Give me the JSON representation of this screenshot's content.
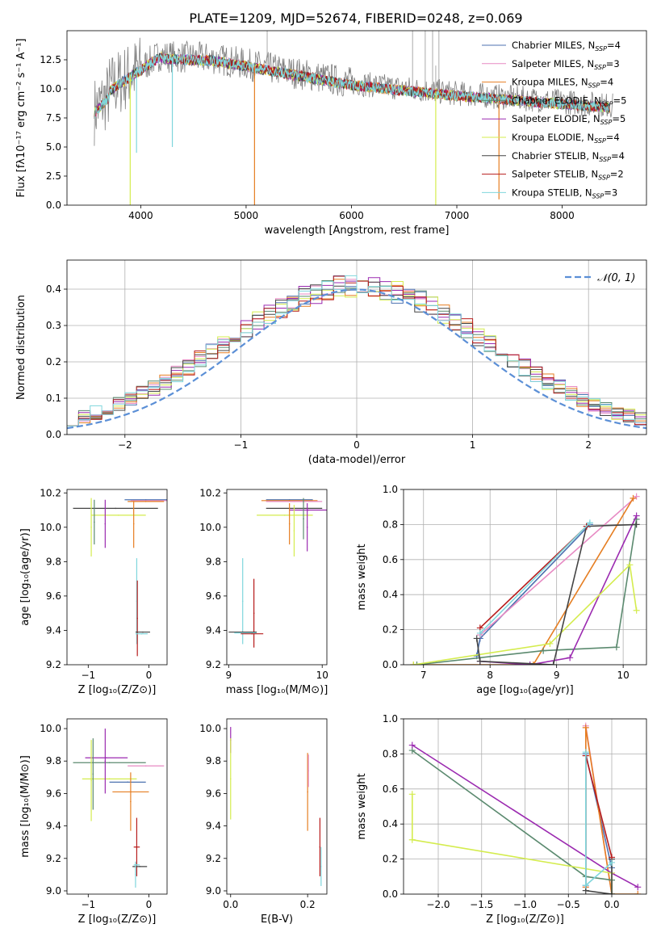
{
  "colors": {
    "chabrier_miles": "#4c72b0",
    "salpeter_miles": "#e78ac3",
    "kroupa_miles": "#e67e22",
    "chabrier_elodie": "#5b8a6f",
    "salpeter_elodie": "#9b2ab0",
    "kroupa_elodie": "#d4ec4e",
    "chabrier_stelib": "#444444",
    "salpeter_stelib": "#b71c1c",
    "kroupa_stelib": "#7fd6dc",
    "gauss": "#5b8fd6",
    "data": "#808080"
  },
  "chart_data": [
    {
      "id": "spectrum",
      "type": "line",
      "title": "PLATE=1209, MJD=52674, FIBERID=0248, z=0.069",
      "xlabel": "wavelength [Angstrom, rest frame]",
      "ylabel": "Flux [fλ10⁻¹⁷ erg cm⁻² s⁻¹ A⁻¹]",
      "xlim": [
        3300,
        8800
      ],
      "ylim": [
        0,
        15
      ],
      "xticks": [
        "4000",
        "5000",
        "6000",
        "7000",
        "8000"
      ],
      "yticks": [
        "0.0",
        "2.5",
        "5.0",
        "7.5",
        "10.0",
        "12.5"
      ],
      "legend_position": "top-right",
      "series": [
        {
          "name": "Chabrier MILES, N",
          "sub": "SSP",
          "suffix": "=4"
        },
        {
          "name": "Salpeter MILES, N",
          "sub": "SSP",
          "suffix": "=3"
        },
        {
          "name": "Kroupa MILES, N",
          "sub": "SSP",
          "suffix": "=4"
        },
        {
          "name": "Chabrier ELODIE, N",
          "sub": "SSP",
          "suffix": "=5"
        },
        {
          "name": "Salpeter ELODIE, N",
          "sub": "SSP",
          "suffix": "=5"
        },
        {
          "name": "Kroupa ELODIE, N",
          "sub": "SSP",
          "suffix": "=4"
        },
        {
          "name": "Chabrier STELIB, N",
          "sub": "SSP",
          "suffix": "=4"
        },
        {
          "name": "Salpeter STELIB, N",
          "sub": "SSP",
          "suffix": "=2"
        },
        {
          "name": "Kroupa STELIB, N",
          "sub": "SSP",
          "suffix": "=3"
        }
      ]
    },
    {
      "id": "residuals",
      "type": "histogram",
      "xlabel": "(data-model)/error",
      "ylabel": "Normed distribution",
      "xlim": [
        -2.5,
        2.5
      ],
      "ylim": [
        0,
        0.48
      ],
      "xticks": [
        "−2",
        "−1",
        "0",
        "1",
        "2"
      ],
      "yticks": [
        "0.0",
        "0.1",
        "0.2",
        "0.3",
        "0.4"
      ],
      "grid": true,
      "legend": "𝒩(0, 1)",
      "gaussian": {
        "mean": 0,
        "sigma": 1
      }
    },
    {
      "id": "age_vs_Z",
      "type": "errorbar",
      "xlabel": "Z [log₁₀(Z/Z⊙)]",
      "ylabel": "age  [log₁₀(age/yr)]",
      "xlim": [
        -1.35,
        0.3
      ],
      "ylim": [
        9.2,
        10.22
      ],
      "xticks": [
        "−1",
        "0"
      ],
      "yticks": [
        "9.2",
        "9.4",
        "9.6",
        "9.8",
        "10.0",
        "10.2"
      ],
      "points": [
        {
          "s": "chabrier_stelib",
          "x": -0.55,
          "xerr": 0.7,
          "y": 10.11,
          "yerr": 0.0
        },
        {
          "s": "kroupa_elodie",
          "x": -0.5,
          "xerr": 0.45,
          "y": 10.07,
          "yerr": 0.0
        },
        {
          "s": "chabrier_elodie",
          "x": -0.9,
          "xerr": 0.0,
          "y": 10.03,
          "yerr": 0.13
        },
        {
          "s": "kroupa_elodie",
          "x": -0.95,
          "xerr": 0.0,
          "y": 10.0,
          "yerr": 0.17
        },
        {
          "s": "salpeter_elodie",
          "x": -0.72,
          "xerr": 0.0,
          "y": 10.02,
          "yerr": 0.14
        },
        {
          "s": "kroupa_miles",
          "x": -0.25,
          "xerr": 0.0,
          "y": 10.02,
          "yerr": 0.14
        },
        {
          "s": "chabrier_miles",
          "x": -0.05,
          "xerr": 0.35,
          "y": 10.16,
          "yerr": 0.0
        },
        {
          "s": "salpeter_miles",
          "x": 0.0,
          "xerr": 0.3,
          "y": 10.155,
          "yerr": 0.0
        },
        {
          "s": "kroupa_miles",
          "x": -0.05,
          "xerr": 0.3,
          "y": 10.15,
          "yerr": 0.0
        },
        {
          "s": "kroupa_stelib",
          "x": -0.2,
          "xerr": 0.0,
          "y": 9.57,
          "yerr": 0.25
        },
        {
          "s": "salpeter_stelib",
          "x": -0.19,
          "xerr": 0.0,
          "y": 9.47,
          "yerr": 0.22
        },
        {
          "s": "chabrier_stelib",
          "x": -0.1,
          "xerr": 0.12,
          "y": 9.39,
          "yerr": 0.0
        },
        {
          "s": "kroupa_stelib",
          "x": -0.12,
          "xerr": 0.1,
          "y": 9.38,
          "yerr": 0.0
        }
      ]
    },
    {
      "id": "age_vs_mass",
      "type": "errorbar",
      "xlabel": "mass [log₁₀(M/M⊙)]",
      "ylabel": "",
      "xlim": [
        8.98,
        10.05
      ],
      "ylim": [
        9.2,
        10.22
      ],
      "xticks": [
        "9",
        "10"
      ],
      "yticks": [
        "9.2",
        "9.4",
        "9.6",
        "9.8",
        "10.0",
        "10.2"
      ],
      "points": [
        {
          "s": "chabrier_miles",
          "x": 9.65,
          "xerr": 0.25,
          "y": 10.16,
          "yerr": 0.0
        },
        {
          "s": "kroupa_miles",
          "x": 9.65,
          "xerr": 0.3,
          "y": 10.155,
          "yerr": 0.0
        },
        {
          "s": "salpeter_miles",
          "x": 9.7,
          "xerr": 0.3,
          "y": 10.15,
          "yerr": 0.0
        },
        {
          "s": "chabrier_stelib",
          "x": 9.7,
          "xerr": 0.3,
          "y": 10.11,
          "yerr": 0.0
        },
        {
          "s": "salpeter_elodie",
          "x": 9.85,
          "xerr": 0.2,
          "y": 10.1,
          "yerr": 0.0
        },
        {
          "s": "kroupa_elodie",
          "x": 9.6,
          "xerr": 0.3,
          "y": 10.07,
          "yerr": 0.0
        },
        {
          "s": "kroupa_elodie",
          "x": 9.7,
          "xerr": 0.0,
          "y": 9.98,
          "yerr": 0.15
        },
        {
          "s": "chabrier_elodie",
          "x": 9.8,
          "xerr": 0.0,
          "y": 10.05,
          "yerr": 0.12
        },
        {
          "s": "salpeter_elodie",
          "x": 9.84,
          "xerr": 0.0,
          "y": 10.0,
          "yerr": 0.14
        },
        {
          "s": "kroupa_miles",
          "x": 9.65,
          "xerr": 0.0,
          "y": 10.02,
          "yerr": 0.12
        },
        {
          "s": "kroupa_stelib",
          "x": 9.15,
          "xerr": 0.0,
          "y": 9.57,
          "yerr": 0.25
        },
        {
          "s": "salpeter_stelib",
          "x": 9.27,
          "xerr": 0.0,
          "y": 9.5,
          "yerr": 0.2
        },
        {
          "s": "chabrier_stelib",
          "x": 9.15,
          "xerr": 0.15,
          "y": 9.39,
          "yerr": 0.0
        },
        {
          "s": "kroupa_stelib",
          "x": 9.18,
          "xerr": 0.12,
          "y": 9.385,
          "yerr": 0.0
        },
        {
          "s": "salpeter_stelib",
          "x": 9.25,
          "xerr": 0.12,
          "y": 9.38,
          "yerr": 0.0
        }
      ]
    },
    {
      "id": "weight_vs_age",
      "type": "line",
      "xlabel": "age  [log₁₀(age/yr)]",
      "ylabel": "mass weight",
      "xlim": [
        6.7,
        10.35
      ],
      "ylim": [
        0,
        1.0
      ],
      "xticks": [
        "7",
        "8",
        "9",
        "10"
      ],
      "yticks": [
        "0.0",
        "0.2",
        "0.4",
        "0.6",
        "0.8",
        "1.0"
      ],
      "grid": true,
      "series": [
        {
          "s": "chabrier_miles",
          "x": [
            7.8,
            7.85,
            9.5
          ],
          "y": [
            0.05,
            0.15,
            0.8
          ]
        },
        {
          "s": "salpeter_miles",
          "x": [
            7.85,
            10.2
          ],
          "y": [
            0.17,
            0.96
          ]
        },
        {
          "s": "kroupa_miles",
          "x": [
            6.85,
            8.65,
            10.15
          ],
          "y": [
            0.0,
            0.0,
            0.95
          ]
        },
        {
          "s": "chabrier_elodie",
          "x": [
            6.9,
            8.8,
            9.9,
            10.2
          ],
          "y": [
            0.0,
            0.08,
            0.1,
            0.83
          ]
        },
        {
          "s": "salpeter_elodie",
          "x": [
            7.85,
            8.6,
            9.2,
            10.2
          ],
          "y": [
            0.02,
            0.0,
            0.04,
            0.85
          ]
        },
        {
          "s": "kroupa_elodie",
          "x": [
            6.85,
            8.9,
            10.1,
            10.2
          ],
          "y": [
            0.0,
            0.12,
            0.57,
            0.31
          ]
        },
        {
          "s": "chabrier_stelib",
          "x": [
            7.8,
            7.85,
            8.95,
            9.45,
            10.2
          ],
          "y": [
            0.15,
            0.02,
            0.0,
            0.79,
            0.8
          ]
        },
        {
          "s": "salpeter_stelib",
          "x": [
            7.85,
            9.45
          ],
          "y": [
            0.21,
            0.79
          ]
        },
        {
          "s": "kroupa_stelib",
          "x": [
            7.85,
            9.5
          ],
          "y": [
            0.18,
            0.81
          ]
        }
      ]
    },
    {
      "id": "mass_vs_Z",
      "type": "errorbar",
      "xlabel": "Z [log₁₀(Z/Z⊙)]",
      "ylabel": "mass [log₁₀(M/M⊙)]",
      "xlim": [
        -1.35,
        0.3
      ],
      "ylim": [
        8.98,
        10.06
      ],
      "xticks": [
        "−1",
        "0"
      ],
      "yticks": [
        "9.0",
        "9.2",
        "9.4",
        "9.6",
        "9.8",
        "10.0"
      ],
      "points": [
        {
          "s": "chabrier_elodie",
          "x": -0.65,
          "xerr": 0.6,
          "y": 9.79,
          "yerr": 0.0
        },
        {
          "s": "salpeter_elodie",
          "x": -0.7,
          "xerr": 0.35,
          "y": 9.82,
          "yerr": 0.0
        },
        {
          "s": "kroupa_elodie",
          "x": -0.65,
          "xerr": 0.45,
          "y": 9.69,
          "yerr": 0.0
        },
        {
          "s": "chabrier_elodie",
          "x": -0.92,
          "xerr": 0.0,
          "y": 9.72,
          "yerr": 0.22
        },
        {
          "s": "kroupa_elodie",
          "x": -0.95,
          "xerr": 0.0,
          "y": 9.68,
          "yerr": 0.25
        },
        {
          "s": "salpeter_elodie",
          "x": -0.72,
          "xerr": 0.0,
          "y": 9.8,
          "yerr": 0.2
        },
        {
          "s": "salpeter_miles",
          "x": -0.05,
          "xerr": 0.3,
          "y": 9.77,
          "yerr": 0.0
        },
        {
          "s": "chabrier_miles",
          "x": -0.35,
          "xerr": 0.3,
          "y": 9.67,
          "yerr": 0.0
        },
        {
          "s": "kroupa_miles",
          "x": -0.3,
          "xerr": 0.3,
          "y": 9.61,
          "yerr": 0.0
        },
        {
          "s": "kroupa_miles",
          "x": -0.3,
          "xerr": 0.0,
          "y": 9.55,
          "yerr": 0.18
        },
        {
          "s": "salpeter_stelib",
          "x": -0.2,
          "xerr": 0.05,
          "y": 9.27,
          "yerr": 0.18
        },
        {
          "s": "chabrier_stelib",
          "x": -0.15,
          "xerr": 0.12,
          "y": 9.15,
          "yerr": 0.0
        },
        {
          "s": "kroupa_stelib",
          "x": -0.2,
          "xerr": 0.05,
          "y": 9.16,
          "yerr": 0.0
        },
        {
          "s": "kroupa_stelib",
          "x": -0.22,
          "xerr": 0.0,
          "y": 9.1,
          "yerr": 0.08
        }
      ]
    },
    {
      "id": "mass_vs_ebv",
      "type": "errorbar",
      "xlabel": "E(B-V)",
      "ylabel": "",
      "xlim": [
        -0.01,
        0.25
      ],
      "ylim": [
        8.98,
        10.06
      ],
      "xticks": [
        "0.0",
        "0.2"
      ],
      "yticks": [
        "9.0",
        "9.2",
        "9.4",
        "9.6",
        "9.8",
        "10.0"
      ],
      "points": [
        {
          "s": "salpeter_elodie",
          "x": 0.0,
          "xerr": 0.0,
          "y": 9.93,
          "yerr": 0.08
        },
        {
          "s": "kroupa_elodie",
          "x": 0.0,
          "xerr": 0.0,
          "y": 9.69,
          "yerr": 0.25
        },
        {
          "s": "kroupa_miles",
          "x": 0.2,
          "xerr": 0.0,
          "y": 9.61,
          "yerr": 0.24
        },
        {
          "s": "salpeter_miles",
          "x": 0.202,
          "xerr": 0.0,
          "y": 9.74,
          "yerr": 0.1
        },
        {
          "s": "salpeter_stelib",
          "x": 0.232,
          "xerr": 0.0,
          "y": 9.27,
          "yerr": 0.18
        },
        {
          "s": "kroupa_stelib",
          "x": 0.235,
          "xerr": 0.0,
          "y": 9.15,
          "yerr": 0.12
        }
      ]
    },
    {
      "id": "weight_vs_Z",
      "type": "line",
      "xlabel": "Z [log₁₀(Z/Z⊙)]",
      "ylabel": "mass weight",
      "xlim": [
        -2.4,
        0.4
      ],
      "ylim": [
        0,
        1.0
      ],
      "xticks": [
        "−2.0",
        "−1.5",
        "−1.0",
        "−0.5",
        "0.0"
      ],
      "yticks": [
        "0.0",
        "0.2",
        "0.4",
        "0.6",
        "0.8",
        "1.0"
      ],
      "grid": true,
      "series": [
        {
          "s": "chabrier_miles",
          "x": [
            -0.3,
            -0.3,
            0.0
          ],
          "y": [
            0.05,
            0.8,
            0.15
          ]
        },
        {
          "s": "salpeter_miles",
          "x": [
            -0.3,
            -0.3,
            0.0
          ],
          "y": [
            0.04,
            0.96,
            0.0
          ]
        },
        {
          "s": "kroupa_miles",
          "x": [
            -0.3,
            -0.3,
            0.0,
            0.3
          ],
          "y": [
            0.04,
            0.95,
            0.0,
            0.0
          ]
        },
        {
          "s": "chabrier_elodie",
          "x": [
            -2.3,
            -0.3,
            0.0,
            0.0
          ],
          "y": [
            0.82,
            0.1,
            0.08,
            0.0
          ]
        },
        {
          "s": "salpeter_elodie",
          "x": [
            -2.3,
            0.0,
            0.3
          ],
          "y": [
            0.85,
            0.12,
            0.04
          ]
        },
        {
          "s": "kroupa_elodie",
          "x": [
            -2.3,
            -2.3,
            0.0,
            0.0
          ],
          "y": [
            0.57,
            0.31,
            0.12,
            0.0
          ]
        },
        {
          "s": "chabrier_stelib",
          "x": [
            -0.3,
            -0.3,
            0.0,
            0.0
          ],
          "y": [
            0.79,
            0.02,
            0.0,
            0.2
          ]
        },
        {
          "s": "salpeter_stelib",
          "x": [
            -0.3,
            0.0
          ],
          "y": [
            0.79,
            0.21
          ]
        },
        {
          "s": "kroupa_stelib",
          "x": [
            -0.3,
            -0.3,
            0.0
          ],
          "y": [
            0.81,
            0.05,
            0.18
          ]
        }
      ]
    }
  ]
}
